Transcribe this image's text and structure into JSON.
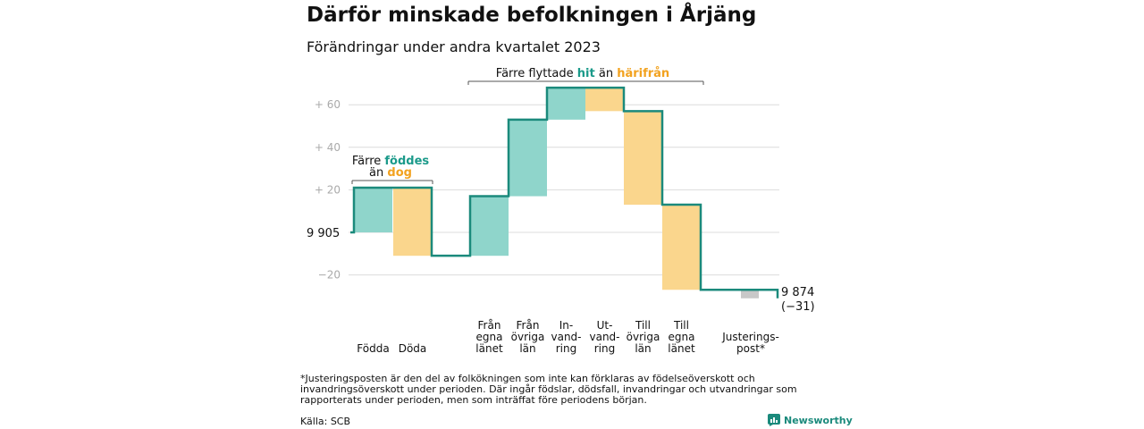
{
  "title": "Därför minskade befolkningen i Årjäng",
  "subtitle": "Förändringar under andra kvartalet 2023",
  "colors": {
    "line": "#1b8a7c",
    "positive": "#8fd5cb",
    "negative": "#fad68d",
    "adjustment": "#c8c8c8",
    "grid": "#dcdcdc",
    "tick": "#aaaaaa",
    "teal_text": "#1b9a8a",
    "orange_text": "#f2a21f"
  },
  "chart_data": {
    "type": "waterfall",
    "start_value": 9905,
    "start_label": "9 905",
    "end_label_value": "9 874",
    "end_label_change": "(−31)",
    "steps": [
      {
        "label": [
          "Födda"
        ],
        "change": 21,
        "kind": "positive"
      },
      {
        "label": [
          "Döda"
        ],
        "change": -32,
        "kind": "negative"
      },
      {
        "label": [
          "Från",
          "egna",
          "länet"
        ],
        "change": 28,
        "kind": "positive"
      },
      {
        "label": [
          "Från",
          "övriga",
          "län"
        ],
        "change": 36,
        "kind": "positive"
      },
      {
        "label": [
          "In-",
          "vand-",
          "ring"
        ],
        "change": 15,
        "kind": "positive"
      },
      {
        "label": [
          "Ut-",
          "vand-",
          "ring"
        ],
        "change": -11,
        "kind": "negative"
      },
      {
        "label": [
          "Till",
          "övriga",
          "län"
        ],
        "change": -44,
        "kind": "negative"
      },
      {
        "label": [
          "Till",
          "egna",
          "länet"
        ],
        "change": -40,
        "kind": "negative"
      },
      {
        "label": [
          "Justerings-",
          "post*"
        ],
        "change": -4,
        "kind": "adjustment"
      }
    ],
    "yticks": [
      {
        "value": 60,
        "label": "+  60"
      },
      {
        "value": 40,
        "label": "+  40"
      },
      {
        "value": 20,
        "label": "+  20"
      },
      {
        "value": -20,
        "label": "−20"
      }
    ],
    "annotations": {
      "births": {
        "line1_plain": "Färre ",
        "line1_teal": "föddes",
        "line2_plain": "än ",
        "line2_orange": "dog"
      },
      "migration": {
        "plain1": "Färre flyttade ",
        "teal": "hit",
        "plain2": " än ",
        "orange": "härifrån"
      }
    }
  },
  "footnote": "*Justeringsposten är den del av folkökningen som inte kan förklaras av födelseöverskott och invandringsöverskott under perioden. Där ingår födslar, dödsfall, invandringar och utvandringar som rapporterats under perioden, men som inträffat före periodens början.",
  "source": "Källa: SCB",
  "brand": "Newsworthy"
}
